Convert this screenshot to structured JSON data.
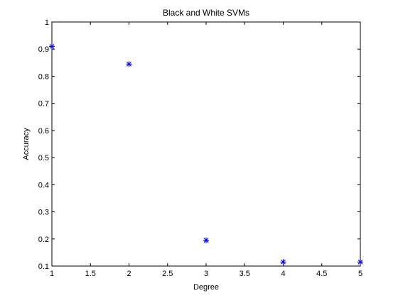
{
  "chart_data": {
    "type": "scatter",
    "title": "Black and White SVMs",
    "xlabel": "Degree",
    "ylabel": "Accuracy",
    "xlim": [
      1,
      5
    ],
    "ylim": [
      0.1,
      1
    ],
    "xticks": [
      1,
      1.5,
      2,
      2.5,
      3,
      3.5,
      4,
      4.5,
      5
    ],
    "xtick_labels": [
      "1",
      "1.5",
      "2",
      "2.5",
      "3",
      "3.5",
      "4",
      "4.5",
      "5"
    ],
    "yticks": [
      0.1,
      0.2,
      0.3,
      0.4,
      0.5,
      0.6,
      0.7,
      0.8,
      0.9,
      1
    ],
    "ytick_labels": [
      "0.1",
      "0.2",
      "0.3",
      "0.4",
      "0.5",
      "0.6",
      "0.7",
      "0.8",
      "0.9",
      "1"
    ],
    "grid": false,
    "legend": false,
    "marker": "asterisk",
    "marker_color": "#0000ff",
    "points": [
      {
        "x": 1,
        "y": 0.91
      },
      {
        "x": 2,
        "y": 0.845
      },
      {
        "x": 3,
        "y": 0.195
      },
      {
        "x": 4,
        "y": 0.115
      },
      {
        "x": 5,
        "y": 0.115
      }
    ]
  }
}
